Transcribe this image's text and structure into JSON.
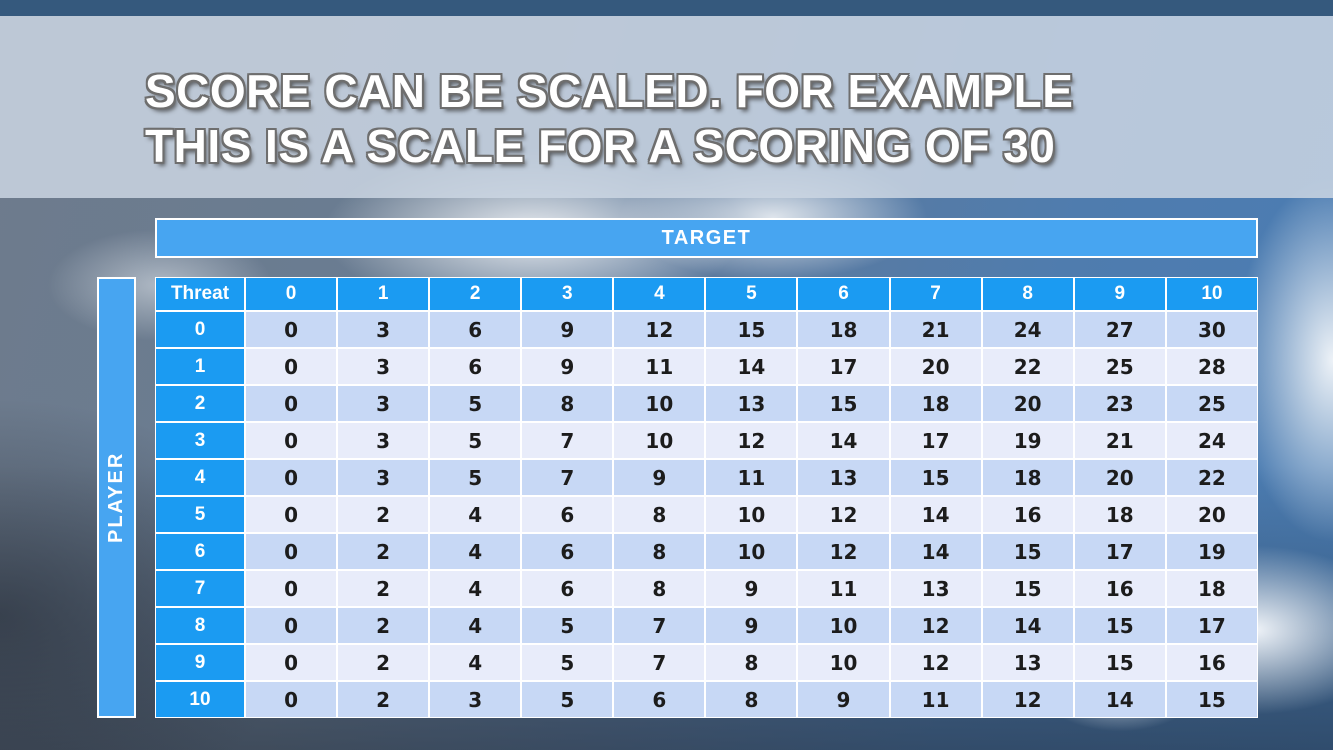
{
  "slide": {
    "title_line1": "SCORE CAN BE SCALED. FOR EXAMPLE",
    "title_line2": "THIS IS A SCALE FOR A SCORING OF 30"
  },
  "axes": {
    "target_label": "TARGET",
    "player_label": "PLAYER"
  },
  "matrix": {
    "corner_label": "Threat",
    "column_headers": [
      "0",
      "1",
      "2",
      "3",
      "4",
      "5",
      "6",
      "7",
      "8",
      "9",
      "10"
    ],
    "rows": [
      {
        "label": "0",
        "values": [
          0,
          3,
          6,
          9,
          12,
          15,
          18,
          21,
          24,
          27,
          30
        ]
      },
      {
        "label": "1",
        "values": [
          0,
          3,
          6,
          9,
          11,
          14,
          17,
          20,
          22,
          25,
          28
        ]
      },
      {
        "label": "2",
        "values": [
          0,
          3,
          5,
          8,
          10,
          13,
          15,
          18,
          20,
          23,
          25
        ]
      },
      {
        "label": "3",
        "values": [
          0,
          3,
          5,
          7,
          10,
          12,
          14,
          17,
          19,
          21,
          24
        ]
      },
      {
        "label": "4",
        "values": [
          0,
          3,
          5,
          7,
          9,
          11,
          13,
          15,
          18,
          20,
          22
        ]
      },
      {
        "label": "5",
        "values": [
          0,
          2,
          4,
          6,
          8,
          10,
          12,
          14,
          16,
          18,
          20
        ]
      },
      {
        "label": "6",
        "values": [
          0,
          2,
          4,
          6,
          8,
          10,
          12,
          14,
          15,
          17,
          19
        ]
      },
      {
        "label": "7",
        "values": [
          0,
          2,
          4,
          6,
          8,
          9,
          11,
          13,
          15,
          16,
          18
        ]
      },
      {
        "label": "8",
        "values": [
          0,
          2,
          4,
          5,
          7,
          9,
          10,
          12,
          14,
          15,
          17
        ]
      },
      {
        "label": "9",
        "values": [
          0,
          2,
          4,
          5,
          7,
          8,
          10,
          12,
          13,
          15,
          16
        ]
      },
      {
        "label": "10",
        "values": [
          0,
          2,
          3,
          5,
          6,
          8,
          9,
          11,
          12,
          14,
          15
        ]
      }
    ]
  },
  "colors": {
    "header_blue": "#1b9bf2",
    "band_blue": "#47a5f1",
    "row_even": "#c7d8f5",
    "row_odd": "#e8ecfa",
    "cell_text": "#1c1c1c",
    "top_strip": "#35597d"
  },
  "chart_data": {
    "type": "table",
    "title": "Scoring scale matrix for a scoring of 30",
    "row_axis_label": "PLAYER",
    "col_axis_label": "TARGET",
    "corner": "Threat",
    "columns": [
      0,
      1,
      2,
      3,
      4,
      5,
      6,
      7,
      8,
      9,
      10
    ],
    "rows": [
      0,
      1,
      2,
      3,
      4,
      5,
      6,
      7,
      8,
      9,
      10
    ],
    "values": [
      [
        0,
        3,
        6,
        9,
        12,
        15,
        18,
        21,
        24,
        27,
        30
      ],
      [
        0,
        3,
        6,
        9,
        11,
        14,
        17,
        20,
        22,
        25,
        28
      ],
      [
        0,
        3,
        5,
        8,
        10,
        13,
        15,
        18,
        20,
        23,
        25
      ],
      [
        0,
        3,
        5,
        7,
        10,
        12,
        14,
        17,
        19,
        21,
        24
      ],
      [
        0,
        3,
        5,
        7,
        9,
        11,
        13,
        15,
        18,
        20,
        22
      ],
      [
        0,
        2,
        4,
        6,
        8,
        10,
        12,
        14,
        16,
        18,
        20
      ],
      [
        0,
        2,
        4,
        6,
        8,
        10,
        12,
        14,
        15,
        17,
        19
      ],
      [
        0,
        2,
        4,
        6,
        8,
        9,
        11,
        13,
        15,
        16,
        18
      ],
      [
        0,
        2,
        4,
        5,
        7,
        9,
        10,
        12,
        14,
        15,
        17
      ],
      [
        0,
        2,
        4,
        5,
        7,
        8,
        10,
        12,
        13,
        15,
        16
      ],
      [
        0,
        2,
        3,
        5,
        6,
        8,
        9,
        11,
        12,
        14,
        15
      ]
    ]
  }
}
